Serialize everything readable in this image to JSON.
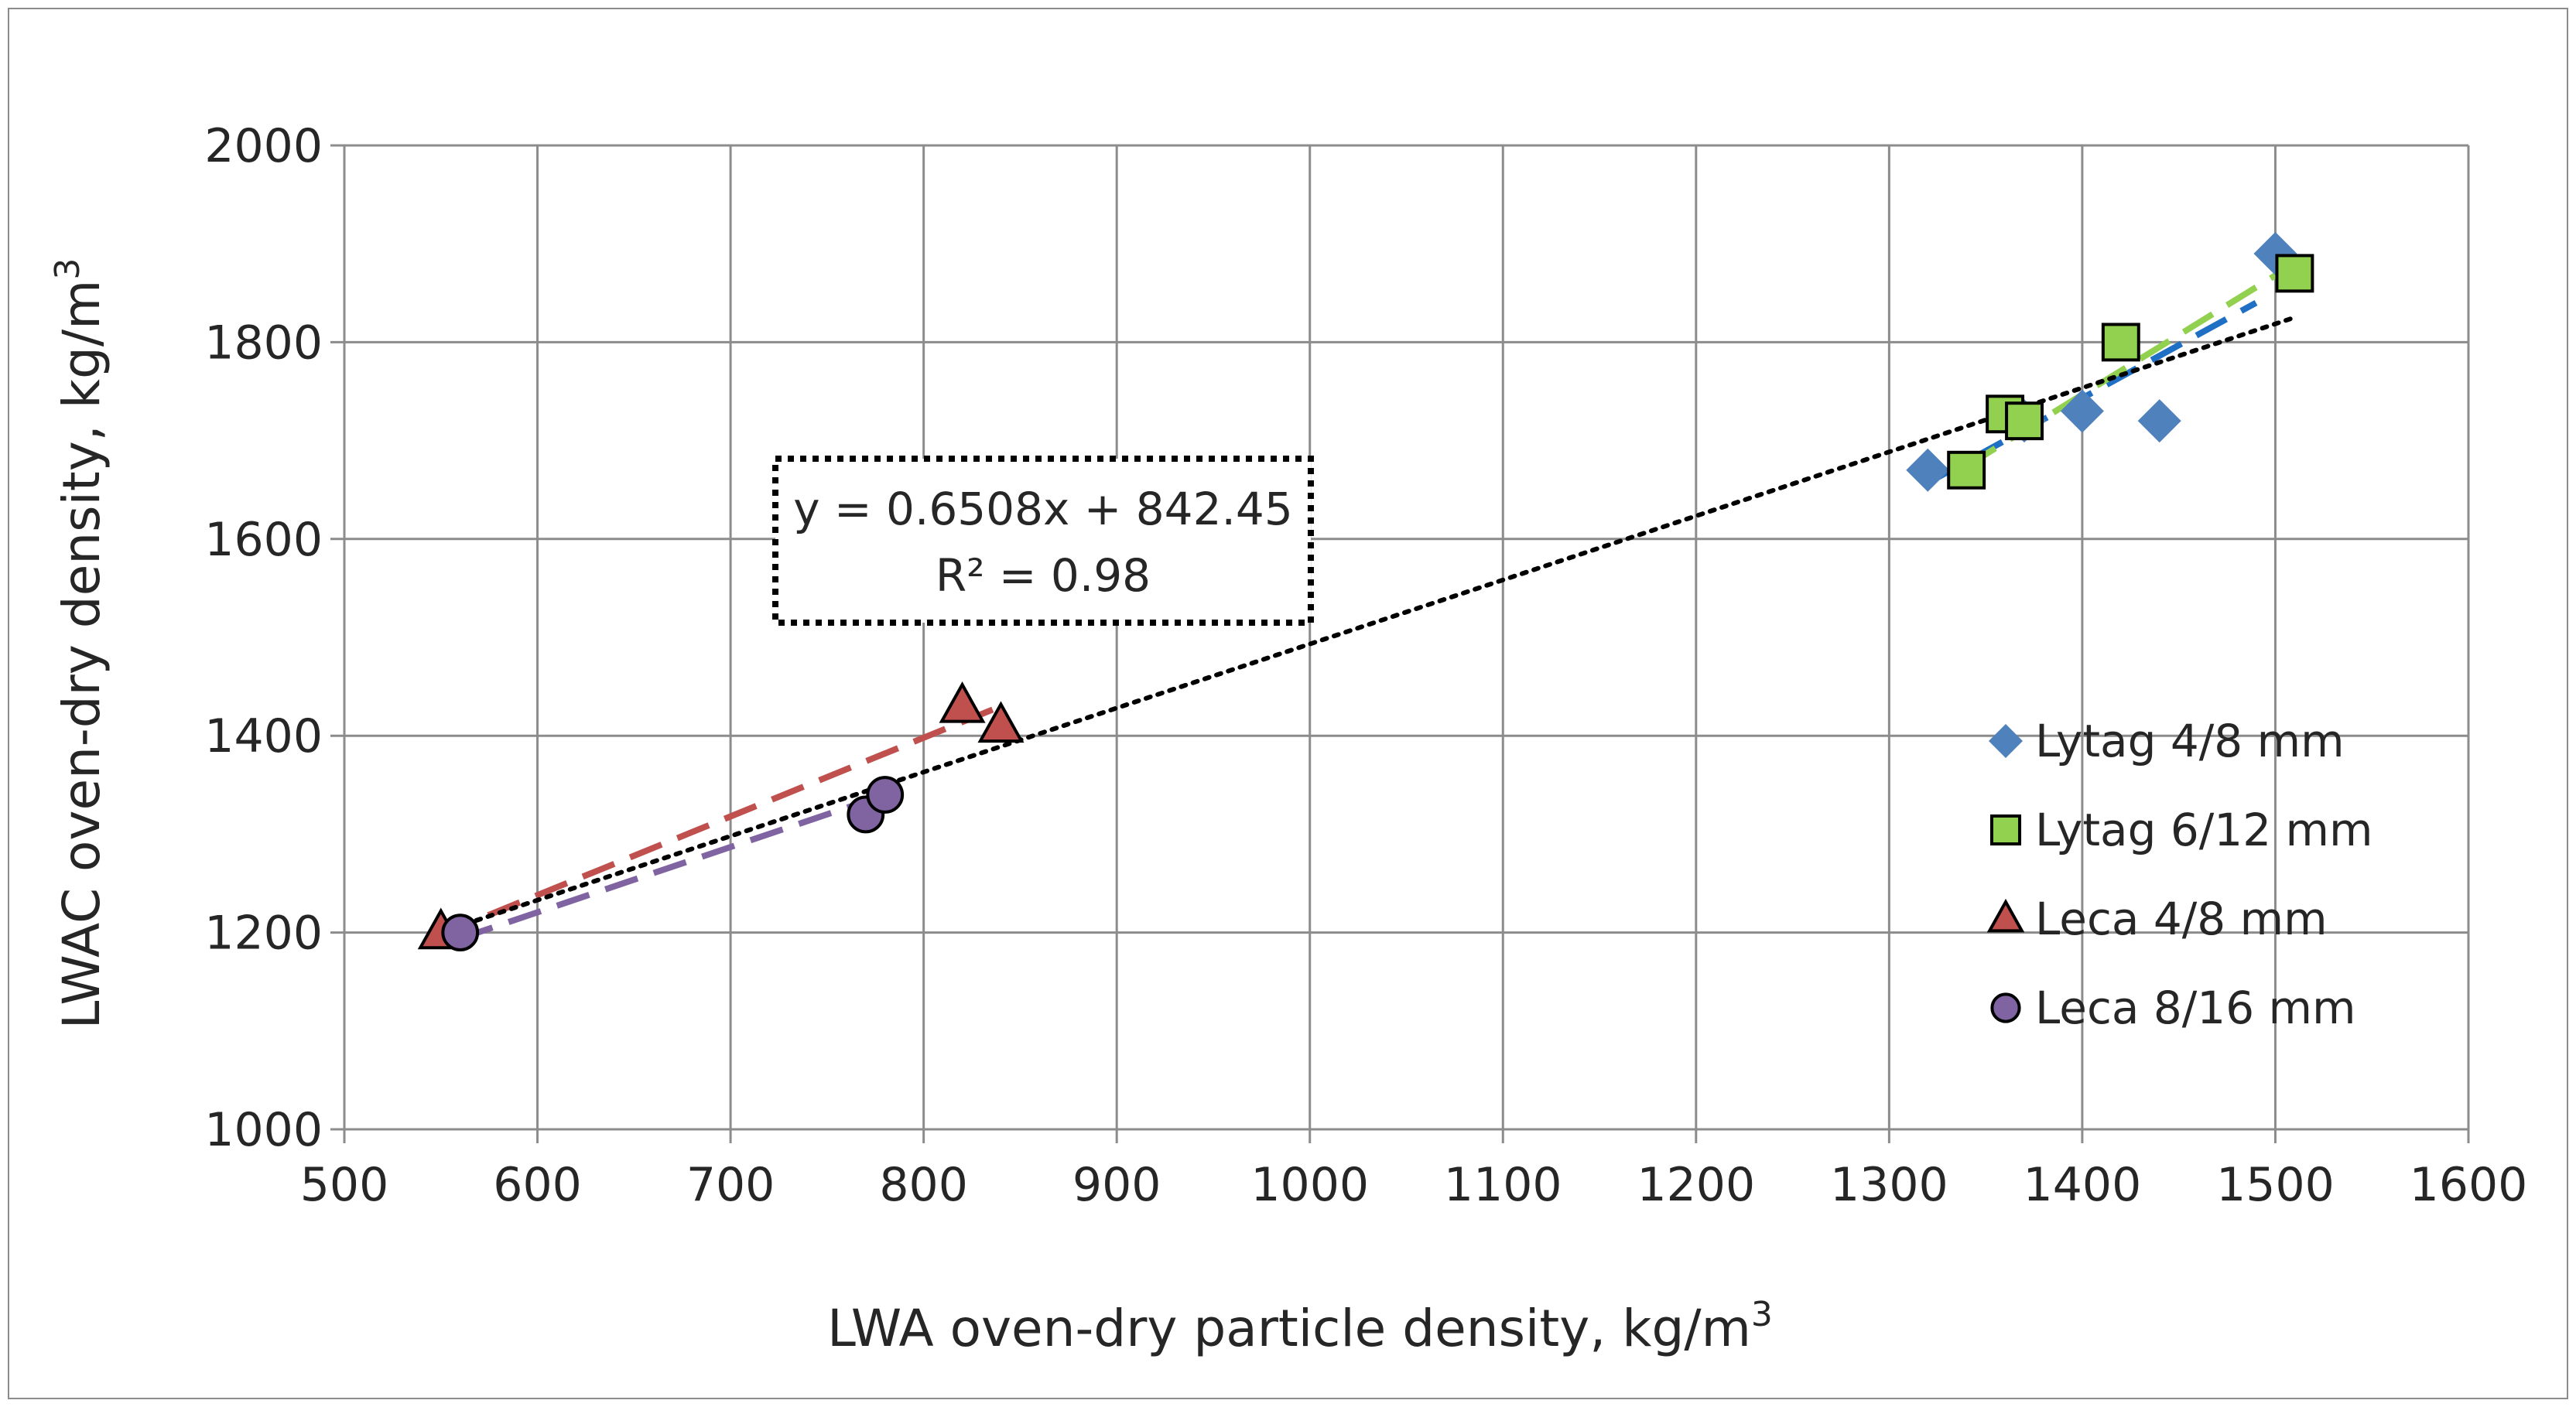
{
  "chart_data": {
    "type": "scatter",
    "xlabel": "LWA oven-dry particle density,  kg/m",
    "xlabel_sup": "3",
    "ylabel": "LWAC oven-dry density,  kg/m",
    "ylabel_sup": "3",
    "xlim": [
      500,
      1600
    ],
    "ylim": [
      1000,
      2000
    ],
    "x_ticks": [
      500,
      600,
      700,
      800,
      900,
      1000,
      1100,
      1200,
      1300,
      1400,
      1500,
      1600
    ],
    "y_ticks": [
      1000,
      1200,
      1400,
      1600,
      1800,
      2000
    ],
    "grid": true,
    "legend_position": "right",
    "series": [
      {
        "name": "Lytag 4/8 mm",
        "marker": "diamond",
        "color": "#4f81bd",
        "trend_color": "#1f6fc5",
        "points": [
          [
            1320,
            1670
          ],
          [
            1370,
            1720
          ],
          [
            1400,
            1730
          ],
          [
            1440,
            1720
          ],
          [
            1500,
            1890
          ]
        ],
        "trend": [
          [
            1320,
            1657
          ],
          [
            1490,
            1840
          ]
        ]
      },
      {
        "name": "Lytag 6/12 mm",
        "marker": "square",
        "color": "#92d050",
        "trend_color": "#92d050",
        "points": [
          [
            1340,
            1670
          ],
          [
            1360,
            1727
          ],
          [
            1370,
            1720
          ],
          [
            1420,
            1800
          ],
          [
            1510,
            1870
          ]
        ],
        "trend": [
          [
            1340,
            1674
          ],
          [
            1510,
            1880
          ]
        ]
      },
      {
        "name": "Leca 4/8 mm",
        "marker": "triangle",
        "color": "#c0504d",
        "trend_color": "#c0504d",
        "points": [
          [
            550,
            1200
          ],
          [
            820,
            1430
          ],
          [
            840,
            1410
          ]
        ],
        "trend": [
          [
            550,
            1198
          ],
          [
            840,
            1430
          ]
        ]
      },
      {
        "name": "Leca 8/16 mm",
        "marker": "circle",
        "color": "#8064a2",
        "trend_color": "#8064a2",
        "points": [
          [
            560,
            1200
          ],
          [
            770,
            1320
          ],
          [
            780,
            1340
          ]
        ],
        "trend": [
          [
            560,
            1194
          ],
          [
            780,
            1340
          ]
        ]
      }
    ],
    "overall_trend": {
      "equation": "y = 0.6508x + 842.45",
      "r_squared": "R² = 0.98",
      "slope": 0.6508,
      "intercept": 842.45,
      "x_range": [
        550,
        1510
      ],
      "color": "#000000"
    }
  }
}
